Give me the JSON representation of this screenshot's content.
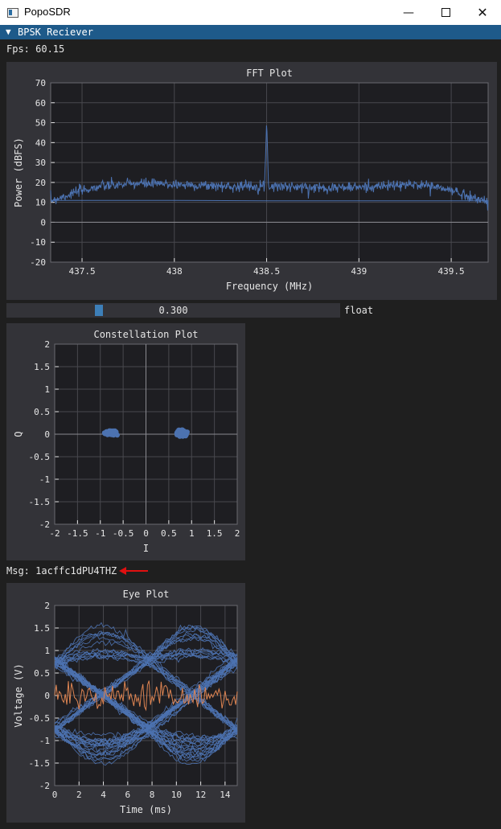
{
  "window": {
    "title": "PopoSDR",
    "minimize_glyph": "—",
    "close_glyph": "✕",
    "icons": [
      "app-window-icon",
      "minimize-icon",
      "maximize-icon",
      "close-icon"
    ]
  },
  "section": {
    "arrow": "▼",
    "label": "BPSK Reciever"
  },
  "fps": {
    "text": "Fps: 60.15"
  },
  "slider": {
    "value_text": "0.300",
    "value": 0.3,
    "label": "float"
  },
  "msg": {
    "text": "Msg: 1acffc1dPU4THZ"
  },
  "colors": {
    "series": "#4c72b0",
    "series2": "#dd8452",
    "grid": "#48484e",
    "plot_bg": "#1e1e22",
    "text": "#e6e6e6",
    "header": "#1e5a8a",
    "annotation_arrow": "#e01010"
  },
  "chart_data": [
    {
      "type": "line",
      "title": "FFT Plot",
      "xlabel": "Frequency (MHz)",
      "ylabel": "Power (dBFS)",
      "xlim": [
        437.33,
        439.7
      ],
      "ylim": [
        -20,
        70
      ],
      "xticks": [
        "437.5",
        "438",
        "438.5",
        "439",
        "439.5"
      ],
      "xtick_values": [
        437.5,
        438,
        438.5,
        439,
        439.5
      ],
      "yticks": [
        "-20",
        "-10",
        "0",
        "10",
        "20",
        "30",
        "40",
        "50",
        "60",
        "70"
      ],
      "ytick_values": [
        -20,
        -10,
        0,
        10,
        20,
        30,
        40,
        50,
        60,
        70
      ],
      "series": [
        {
          "type": "noise_band",
          "x": [
            437.33,
            437.4,
            437.5,
            437.6,
            437.8,
            438.0,
            438.3,
            438.49,
            438.5,
            438.51,
            438.7,
            439.0,
            439.2,
            439.35,
            439.5,
            439.6,
            439.7
          ],
          "y": [
            11,
            13,
            16,
            18,
            19.5,
            19,
            18,
            18.5,
            51,
            18.5,
            17.5,
            17.5,
            18.5,
            19,
            16,
            13,
            10
          ]
        },
        {
          "type": "line",
          "x": [
            437.33,
            438.0,
            438.5,
            439.0,
            439.7
          ],
          "y": [
            11,
            11,
            10.8,
            10.8,
            10.8
          ]
        },
        {
          "type": "line",
          "x": [
            437.33,
            439.7
          ],
          "y": [
            0,
            0
          ]
        }
      ]
    },
    {
      "type": "scatter",
      "title": "Constellation Plot",
      "xlabel": "I",
      "ylabel": "Q",
      "xlim": [
        -2,
        2
      ],
      "ylim": [
        -2,
        2
      ],
      "xticks": [
        "-2",
        "-1.5",
        "-1",
        "-0.5",
        "0",
        "0.5",
        "1",
        "1.5",
        "2"
      ],
      "xtick_values": [
        -2,
        -1.5,
        -1,
        -0.5,
        0,
        0.5,
        1,
        1.5,
        2
      ],
      "yticks": [
        "-2",
        "-1.5",
        "-1",
        "-0.5",
        "0",
        "0.5",
        "1",
        "1.5",
        "2"
      ],
      "ytick_values": [
        -2,
        -1.5,
        -1,
        -0.5,
        0,
        0.5,
        1,
        1.5,
        2
      ],
      "clusters": [
        {
          "cx": -0.75,
          "cy": 0.03,
          "sx": 0.11,
          "sy": 0.035
        },
        {
          "cx": 0.78,
          "cy": 0.02,
          "sx": 0.08,
          "sy": 0.05
        }
      ]
    },
    {
      "type": "line",
      "title": "Eye Plot",
      "xlabel": "Time (ms)",
      "ylabel": "Voltage (V)",
      "xlim": [
        0,
        15
      ],
      "ylim": [
        -2,
        2
      ],
      "xticks": [
        "0",
        "2",
        "4",
        "6",
        "8",
        "10",
        "12",
        "14"
      ],
      "xtick_values": [
        0,
        2,
        4,
        6,
        8,
        10,
        12,
        14
      ],
      "yticks": [
        "-2",
        "-1.5",
        "-1",
        "-0.5",
        "0",
        "0.5",
        "1",
        "1.5",
        "2"
      ],
      "ytick_values": [
        -2,
        -1.5,
        -1,
        -0.5,
        0,
        0.5,
        1,
        1.5,
        2
      ],
      "symbol_times": [
        0,
        7.7,
        15
      ],
      "levels": [
        0.78,
        -0.72
      ],
      "peak_amplitude": 1.55,
      "traces": 60,
      "series": [
        {
          "type": "noise",
          "color": "#dd8452",
          "mean": 0.0,
          "range": [
            -0.45,
            0.45
          ]
        }
      ]
    }
  ]
}
